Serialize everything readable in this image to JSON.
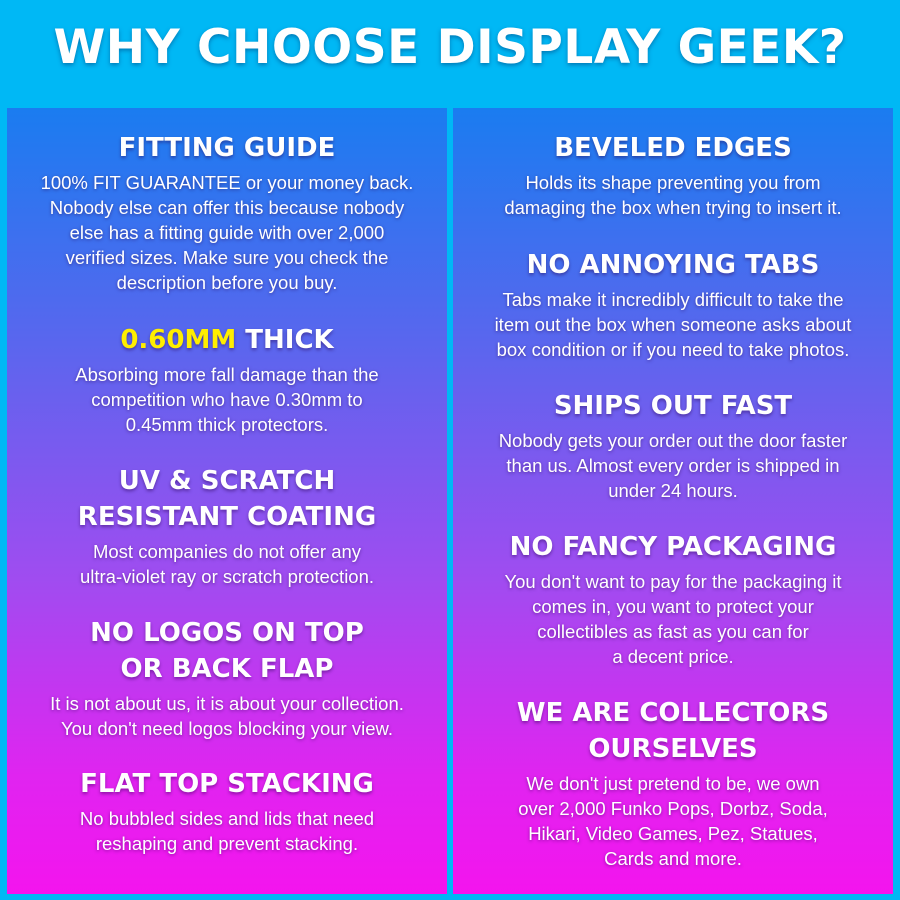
{
  "title": "WHY CHOOSE DISPLAY GEEK?",
  "colors": {
    "background": "#00b8f5",
    "gradient_top": "#1a7cf0",
    "gradient_bottom": "#f414ee",
    "highlight": "#ffee00"
  },
  "left": [
    {
      "heading": [
        "FITTING GUIDE"
      ],
      "body": [
        "100% FIT GUARANTEE or your money back.",
        "Nobody else can offer this because nobody",
        "else has a fitting guide with over 2,000",
        "verified sizes. Make sure you check the",
        "description before you buy."
      ]
    },
    {
      "heading_highlight": "0.60MM",
      "heading": [
        "THICK"
      ],
      "body": [
        "Absorbing more fall damage than the",
        "competition who have 0.30mm to",
        "0.45mm thick protectors."
      ]
    },
    {
      "heading": [
        "UV & SCRATCH",
        "RESISTANT COATING"
      ],
      "body": [
        "Most companies do not offer any",
        "ultra-violet ray or scratch protection."
      ]
    },
    {
      "heading": [
        "NO LOGOS ON TOP",
        "OR BACK FLAP"
      ],
      "body": [
        "It is not about us, it is about your collection.",
        "You don't need logos blocking your view."
      ]
    },
    {
      "heading": [
        "FLAT TOP STACKING"
      ],
      "body": [
        "No bubbled sides and lids that need",
        "reshaping and prevent stacking."
      ]
    }
  ],
  "right": [
    {
      "heading": [
        "BEVELED EDGES"
      ],
      "body": [
        "Holds its shape preventing you from",
        "damaging the box when trying to insert it."
      ]
    },
    {
      "heading": [
        "NO ANNOYING TABS"
      ],
      "body": [
        "Tabs make it incredibly difficult to take the",
        "item out the box when someone asks about",
        "box condition or if you need to take photos."
      ]
    },
    {
      "heading": [
        "SHIPS OUT FAST"
      ],
      "body": [
        "Nobody gets your order out the door faster",
        "than us. Almost every order is shipped in",
        "under 24 hours."
      ]
    },
    {
      "heading": [
        "NO FANCY PACKAGING"
      ],
      "body": [
        "You don't want to pay for the packaging it",
        "comes in, you want to protect your",
        "collectibles as fast as you can for",
        "a decent price."
      ]
    },
    {
      "heading": [
        "WE ARE COLLECTORS",
        "OURSELVES"
      ],
      "body": [
        "We don't just pretend to be, we own",
        "over 2,000 Funko Pops, Dorbz, Soda,",
        "Hikari, Video Games, Pez, Statues,",
        "Cards and more."
      ]
    }
  ]
}
